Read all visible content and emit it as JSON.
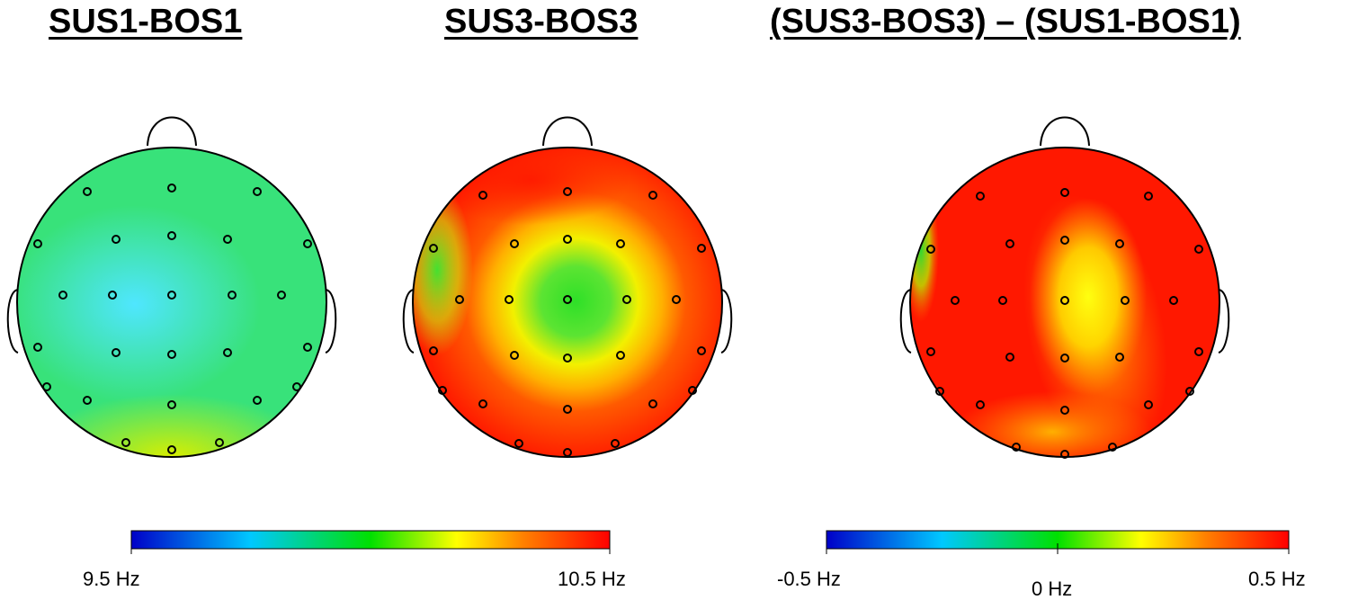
{
  "titles": {
    "map1": "SUS1-BOS1",
    "map2": "SUS3-BOS3",
    "map3": "(SUS3-BOS3) – (SUS1-BOS1)"
  },
  "colorbars": {
    "absolute": {
      "min_label": "9.5 Hz",
      "max_label": "10.5 Hz"
    },
    "difference": {
      "min_label": "-0.5 Hz",
      "mid_label": "0 Hz",
      "max_label": "0.5 Hz"
    }
  },
  "colors": {
    "scale": [
      "#0000c8",
      "#00c8ff",
      "#00e000",
      "#ffff00",
      "#ff8000",
      "#ff0000"
    ],
    "outline": "#000000"
  }
}
